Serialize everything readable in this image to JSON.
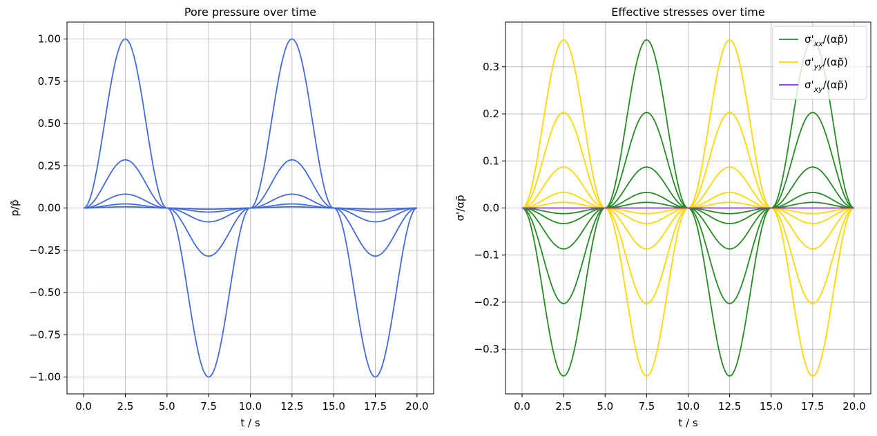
{
  "chart_data": [
    {
      "type": "line",
      "title": "Pore pressure over time",
      "xlabel": "t / s",
      "ylabel": "p/p̃",
      "xlim": [
        -1,
        21
      ],
      "ylim": [
        -1.1,
        1.1
      ],
      "xticks": [
        0,
        2.5,
        5,
        7.5,
        10,
        12.5,
        15,
        17.5,
        20
      ],
      "xtick_labels": [
        "0.0",
        "2.5",
        "5.0",
        "7.5",
        "10.0",
        "12.5",
        "15.0",
        "17.5",
        "20.0"
      ],
      "yticks": [
        -1,
        -0.75,
        -0.5,
        -0.25,
        0,
        0.25,
        0.5,
        0.75,
        1
      ],
      "ytick_labels": [
        "−1.00",
        "−0.75",
        "−0.50",
        "−0.25",
        "0.00",
        "0.25",
        "0.50",
        "0.75",
        "1.00"
      ],
      "grid": true,
      "color": "#4169e1",
      "function": "A * sin(2*pi*t/10) * |sin(2*pi*t/10)|",
      "amplitudes": [
        1.0,
        0.285,
        0.082,
        0.024,
        0.007
      ],
      "x_range": [
        0,
        20
      ]
    },
    {
      "type": "line",
      "title": "Effective stresses over time",
      "xlabel": "t / s",
      "ylabel": "σ'/αp̃",
      "xlim": [
        -1,
        21
      ],
      "ylim": [
        -0.395,
        0.395
      ],
      "xticks": [
        0,
        2.5,
        5,
        7.5,
        10,
        12.5,
        15,
        17.5,
        20
      ],
      "xtick_labels": [
        "0.0",
        "2.5",
        "5.0",
        "7.5",
        "10.0",
        "12.5",
        "15.0",
        "17.5",
        "20.0"
      ],
      "yticks": [
        -0.3,
        -0.2,
        -0.1,
        0,
        0.1,
        0.2,
        0.3
      ],
      "ytick_labels": [
        "−0.3",
        "−0.2",
        "−0.1",
        "0.0",
        "0.1",
        "0.2",
        "0.3"
      ],
      "grid": true,
      "legend_position": "top-right",
      "function": "A * sin(2*pi*t/10) * |sin(2*pi*t/10)|",
      "x_range": [
        0,
        20
      ],
      "series": [
        {
          "name": "σ'xx/(αp̃)",
          "legend_main": "σ'",
          "legend_sub": "xx",
          "legend_tail": "/(αp̃)",
          "color": "#228b22",
          "amplitudes": [
            -0.357,
            -0.203,
            -0.087,
            -0.033,
            -0.012
          ]
        },
        {
          "name": "σ'yy/(αp̃)",
          "legend_main": "σ'",
          "legend_sub": "yy",
          "legend_tail": "/(αp̃)",
          "color": "#ffd700",
          "amplitudes": [
            0.357,
            0.203,
            0.087,
            0.033,
            0.012
          ]
        },
        {
          "name": "σ'xy/(αp̃)",
          "legend_main": "σ'",
          "legend_sub": "xy",
          "legend_tail": "/(αp̃)",
          "color": "#8a2be2",
          "amplitudes": [
            0.0
          ]
        }
      ]
    }
  ]
}
